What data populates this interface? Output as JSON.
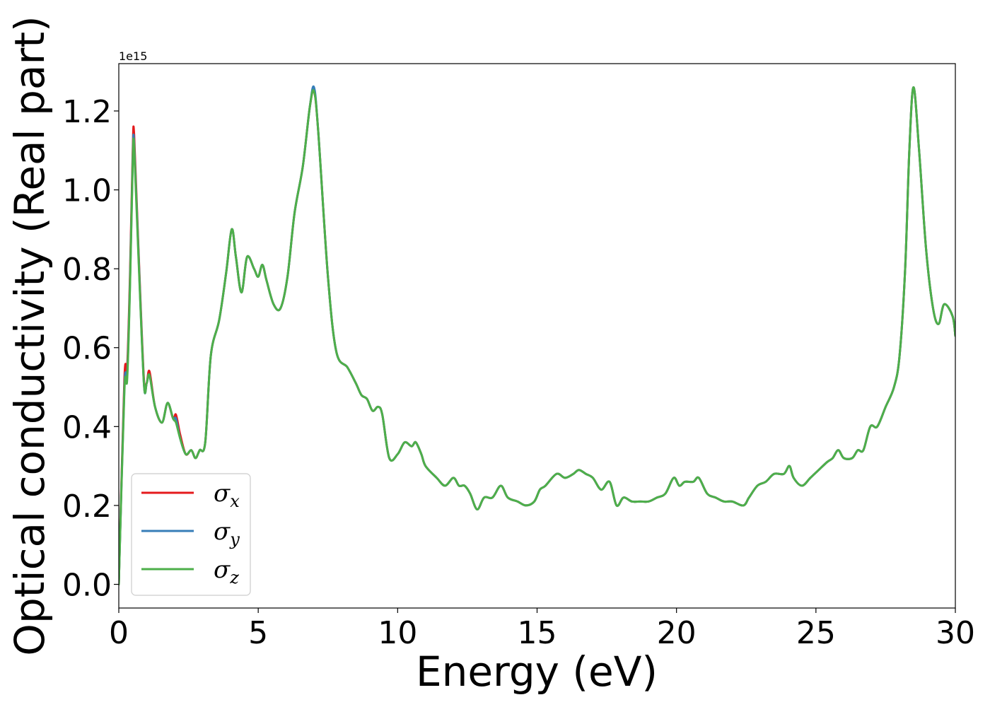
{
  "chart_data": {
    "type": "line",
    "xlabel": "Energy (eV)",
    "ylabel": "Optical conductivity (Real part)",
    "y_offset_label": "1e15",
    "xlim": [
      0,
      30
    ],
    "ylim": [
      -0.06,
      1.32
    ],
    "x_ticks": [
      0,
      5,
      10,
      15,
      20,
      25,
      30
    ],
    "x_tick_labels": [
      "0",
      "5",
      "10",
      "15",
      "20",
      "25",
      "30"
    ],
    "y_ticks": [
      0.0,
      0.2,
      0.4,
      0.6,
      0.8,
      1.0,
      1.2
    ],
    "y_tick_labels": [
      "0.0",
      "0.2",
      "0.4",
      "0.6",
      "0.8",
      "1.0",
      "1.2"
    ],
    "grid": false,
    "legend_position": "lower-left",
    "x": [
      0,
      0.2,
      0.3,
      0.4,
      0.5,
      0.55,
      0.7,
      0.9,
      1.0,
      1.1,
      1.3,
      1.55,
      1.75,
      1.95,
      2.05,
      2.2,
      2.4,
      2.6,
      2.75,
      2.9,
      3.1,
      3.3,
      3.6,
      3.85,
      4.05,
      4.2,
      4.4,
      4.6,
      4.85,
      5.0,
      5.15,
      5.3,
      5.55,
      5.8,
      6.05,
      6.3,
      6.6,
      6.85,
      7.0,
      7.15,
      7.5,
      7.8,
      8.2,
      8.5,
      8.7,
      8.9,
      9.1,
      9.3,
      9.45,
      9.7,
      10.0,
      10.25,
      10.5,
      10.65,
      10.85,
      11.0,
      11.4,
      11.7,
      12.0,
      12.2,
      12.4,
      12.6,
      12.85,
      13.1,
      13.4,
      13.7,
      13.95,
      14.3,
      14.6,
      14.9,
      15.1,
      15.3,
      15.7,
      16.0,
      16.3,
      16.5,
      16.75,
      17.0,
      17.3,
      17.6,
      17.85,
      18.1,
      18.4,
      18.7,
      19.0,
      19.3,
      19.6,
      19.9,
      20.1,
      20.3,
      20.6,
      20.8,
      21.1,
      21.4,
      21.7,
      22.0,
      22.4,
      22.6,
      22.9,
      23.2,
      23.5,
      23.85,
      24.05,
      24.2,
      24.5,
      24.8,
      25.1,
      25.4,
      25.6,
      25.8,
      26.0,
      26.3,
      26.5,
      26.7,
      26.95,
      27.2,
      27.5,
      27.8,
      28.0,
      28.2,
      28.35,
      28.5,
      28.7,
      28.95,
      29.2,
      29.4,
      29.6,
      29.9,
      30.0
    ],
    "series": [
      {
        "name": "σ_x",
        "color": "#e41a1c",
        "values": [
          0,
          0.52,
          0.55,
          0.78,
          1.1,
          1.14,
          0.86,
          0.52,
          0.51,
          0.54,
          0.45,
          0.41,
          0.46,
          0.42,
          0.43,
          0.38,
          0.33,
          0.34,
          0.32,
          0.34,
          0.36,
          0.58,
          0.67,
          0.79,
          0.9,
          0.83,
          0.74,
          0.83,
          0.8,
          0.78,
          0.81,
          0.77,
          0.71,
          0.7,
          0.78,
          0.94,
          1.06,
          1.21,
          1.25,
          1.15,
          0.78,
          0.59,
          0.55,
          0.51,
          0.48,
          0.47,
          0.44,
          0.45,
          0.43,
          0.32,
          0.33,
          0.36,
          0.35,
          0.36,
          0.33,
          0.3,
          0.27,
          0.25,
          0.27,
          0.25,
          0.25,
          0.23,
          0.19,
          0.22,
          0.22,
          0.25,
          0.22,
          0.21,
          0.2,
          0.21,
          0.24,
          0.25,
          0.28,
          0.27,
          0.28,
          0.29,
          0.28,
          0.27,
          0.24,
          0.26,
          0.2,
          0.22,
          0.21,
          0.21,
          0.21,
          0.22,
          0.23,
          0.27,
          0.25,
          0.26,
          0.26,
          0.27,
          0.23,
          0.22,
          0.21,
          0.21,
          0.2,
          0.22,
          0.25,
          0.26,
          0.28,
          0.28,
          0.3,
          0.27,
          0.25,
          0.27,
          0.29,
          0.31,
          0.32,
          0.34,
          0.32,
          0.32,
          0.34,
          0.34,
          0.4,
          0.4,
          0.45,
          0.5,
          0.58,
          0.8,
          1.1,
          1.26,
          1.1,
          0.85,
          0.7,
          0.66,
          0.71,
          0.68,
          0.63
        ]
      },
      {
        "name": "σ_y",
        "color": "#377eb8",
        "values": [
          0,
          0.5,
          0.53,
          0.76,
          1.08,
          1.12,
          0.85,
          0.51,
          0.51,
          0.53,
          0.45,
          0.41,
          0.46,
          0.42,
          0.42,
          0.37,
          0.33,
          0.34,
          0.32,
          0.34,
          0.36,
          0.58,
          0.67,
          0.79,
          0.9,
          0.83,
          0.74,
          0.83,
          0.8,
          0.78,
          0.81,
          0.77,
          0.71,
          0.7,
          0.78,
          0.94,
          1.06,
          1.21,
          1.26,
          1.15,
          0.78,
          0.59,
          0.55,
          0.51,
          0.48,
          0.47,
          0.44,
          0.45,
          0.43,
          0.32,
          0.33,
          0.36,
          0.35,
          0.36,
          0.33,
          0.3,
          0.27,
          0.25,
          0.27,
          0.25,
          0.25,
          0.23,
          0.19,
          0.22,
          0.22,
          0.25,
          0.22,
          0.21,
          0.2,
          0.21,
          0.24,
          0.25,
          0.28,
          0.27,
          0.28,
          0.29,
          0.28,
          0.27,
          0.24,
          0.26,
          0.2,
          0.22,
          0.21,
          0.21,
          0.21,
          0.22,
          0.23,
          0.27,
          0.25,
          0.26,
          0.26,
          0.27,
          0.23,
          0.22,
          0.21,
          0.21,
          0.2,
          0.22,
          0.25,
          0.26,
          0.28,
          0.28,
          0.3,
          0.27,
          0.25,
          0.27,
          0.29,
          0.31,
          0.32,
          0.34,
          0.32,
          0.32,
          0.34,
          0.34,
          0.4,
          0.4,
          0.45,
          0.5,
          0.58,
          0.8,
          1.1,
          1.26,
          1.1,
          0.85,
          0.7,
          0.66,
          0.71,
          0.68,
          0.63
        ]
      },
      {
        "name": "σ_z",
        "color": "#4daf4a",
        "values": [
          0,
          0.49,
          0.52,
          0.75,
          1.07,
          1.11,
          0.84,
          0.51,
          0.51,
          0.53,
          0.45,
          0.41,
          0.46,
          0.42,
          0.41,
          0.37,
          0.33,
          0.34,
          0.32,
          0.34,
          0.36,
          0.58,
          0.67,
          0.79,
          0.9,
          0.83,
          0.74,
          0.83,
          0.8,
          0.78,
          0.81,
          0.77,
          0.71,
          0.7,
          0.78,
          0.94,
          1.06,
          1.21,
          1.25,
          1.15,
          0.78,
          0.59,
          0.55,
          0.51,
          0.48,
          0.47,
          0.44,
          0.45,
          0.43,
          0.32,
          0.33,
          0.36,
          0.35,
          0.36,
          0.33,
          0.3,
          0.27,
          0.25,
          0.27,
          0.25,
          0.25,
          0.23,
          0.19,
          0.22,
          0.22,
          0.25,
          0.22,
          0.21,
          0.2,
          0.21,
          0.24,
          0.25,
          0.28,
          0.27,
          0.28,
          0.29,
          0.28,
          0.27,
          0.24,
          0.26,
          0.2,
          0.22,
          0.21,
          0.21,
          0.21,
          0.22,
          0.23,
          0.27,
          0.25,
          0.26,
          0.26,
          0.27,
          0.23,
          0.22,
          0.21,
          0.21,
          0.2,
          0.22,
          0.25,
          0.26,
          0.28,
          0.28,
          0.3,
          0.27,
          0.25,
          0.27,
          0.29,
          0.31,
          0.32,
          0.34,
          0.32,
          0.32,
          0.34,
          0.34,
          0.4,
          0.4,
          0.45,
          0.5,
          0.58,
          0.8,
          1.1,
          1.26,
          1.1,
          0.85,
          0.7,
          0.66,
          0.71,
          0.68,
          0.63
        ]
      }
    ],
    "legend": [
      {
        "symbol": "σ",
        "subscript": "x",
        "color": "#e41a1c"
      },
      {
        "symbol": "σ",
        "subscript": "y",
        "color": "#377eb8"
      },
      {
        "symbol": "σ",
        "subscript": "z",
        "color": "#4daf4a"
      }
    ]
  }
}
